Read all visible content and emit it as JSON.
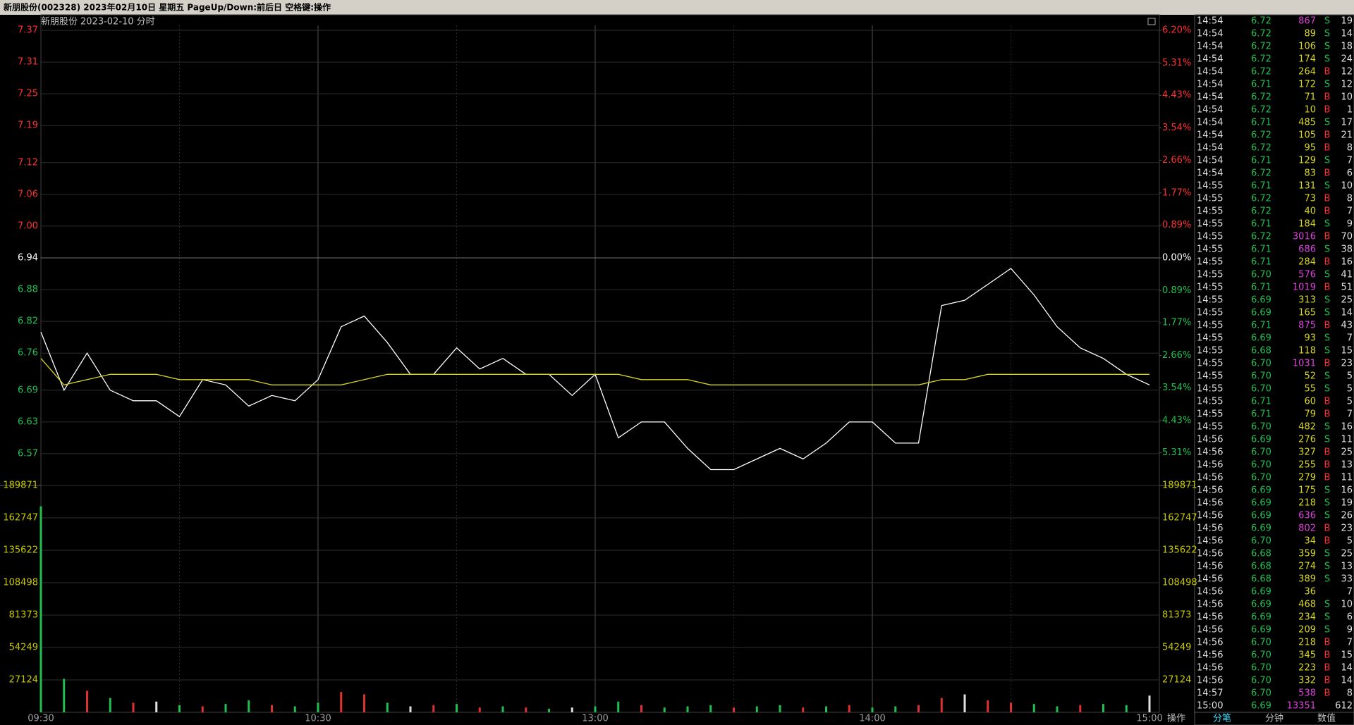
{
  "window_title": "新朋股份(002328) 2023年02月10日 星期五 PageUp/Down:前后日 空格键:操作",
  "operate": "操作",
  "tabs": [
    "分笔",
    "分钟",
    "数值"
  ],
  "chart_data": [
    {
      "type": "line",
      "title": "新朋股份",
      "subtitle": "2023-02-10 分时",
      "categories": [
        "09:30",
        null,
        null,
        null,
        null,
        null,
        null,
        null,
        null,
        null,
        null,
        null,
        "10:30",
        null,
        null,
        null,
        null,
        null,
        null,
        null,
        null,
        null,
        null,
        null,
        "13:00",
        null,
        null,
        null,
        null,
        null,
        null,
        null,
        null,
        null,
        null,
        null,
        "14:00",
        null,
        null,
        null,
        null,
        null,
        null,
        null,
        null,
        null,
        null,
        null,
        "15:00"
      ],
      "series": [
        {
          "color": "#ffffff",
          "values": [
            6.8,
            6.69,
            6.76,
            6.69,
            6.67,
            6.67,
            6.64,
            6.71,
            6.7,
            6.66,
            6.68,
            6.67,
            6.71,
            6.81,
            6.83,
            6.78,
            6.72,
            6.72,
            6.77,
            6.73,
            6.75,
            6.72,
            6.72,
            6.68,
            6.72,
            6.6,
            6.63,
            6.63,
            6.58,
            6.54,
            6.54,
            6.56,
            6.58,
            6.56,
            6.59,
            6.63,
            6.63,
            6.59,
            6.59,
            6.85,
            6.86,
            6.89,
            6.92,
            6.87,
            6.81,
            6.77,
            6.75,
            6.72,
            6.7
          ]
        },
        {
          "color": "#d8d820",
          "values": [
            6.75,
            6.7,
            6.71,
            6.72,
            6.72,
            6.72,
            6.71,
            6.71,
            6.71,
            6.71,
            6.7,
            6.7,
            6.7,
            6.7,
            6.71,
            6.72,
            6.72,
            6.72,
            6.72,
            6.72,
            6.72,
            6.72,
            6.72,
            6.72,
            6.72,
            6.72,
            6.71,
            6.71,
            6.71,
            6.7,
            6.7,
            6.7,
            6.7,
            6.7,
            6.7,
            6.7,
            6.7,
            6.7,
            6.7,
            6.71,
            6.71,
            6.72,
            6.72,
            6.72,
            6.72,
            6.72,
            6.72,
            6.72,
            6.72
          ]
        }
      ],
      "ylim": [
        6.51,
        7.37
      ],
      "yticks": [
        7.37,
        7.31,
        7.25,
        7.19,
        7.12,
        7.06,
        {
          "value": 7,
          "label": "7.00"
        },
        6.94,
        6.88,
        6.82,
        6.76,
        6.69,
        6.63,
        6.57
      ],
      "y2lim": [
        -6.2,
        6.2
      ],
      "y2ticks": [
        {
          "value": 6.2,
          "label": "6.20%"
        },
        {
          "value": 5.31,
          "label": "5.31%"
        },
        {
          "value": 4.43,
          "label": "4.43%"
        },
        {
          "value": 3.54,
          "label": "3.54%"
        },
        {
          "value": 2.66,
          "label": "2.66%"
        },
        {
          "value": 1.77,
          "label": "1.77%"
        },
        {
          "value": 0.89,
          "label": "0.89%"
        },
        {
          "value": 0,
          "label": "0.00%"
        },
        {
          "value": -0.89,
          "label": "0.89%"
        },
        {
          "value": -1.77,
          "label": "1.77%"
        },
        {
          "value": -2.66,
          "label": "2.66%"
        },
        {
          "value": -3.54,
          "label": "3.54%"
        },
        {
          "value": -4.43,
          "label": "4.43%"
        },
        {
          "value": -5.31,
          "label": "5.31%"
        }
      ],
      "grid": true
    },
    {
      "type": "bar",
      "categories": [
        "09:30",
        null,
        null,
        null,
        null,
        null,
        null,
        null,
        null,
        null,
        null,
        null,
        "10:30",
        null,
        null,
        null,
        null,
        null,
        null,
        null,
        null,
        null,
        null,
        null,
        "13:00",
        null,
        null,
        null,
        null,
        null,
        null,
        null,
        null,
        null,
        null,
        null,
        "14:00",
        null,
        null,
        null,
        null,
        null,
        null,
        null,
        null,
        null,
        null,
        null,
        "15:00"
      ],
      "values": [
        172400,
        28000,
        18000,
        12000,
        8000,
        9000,
        6000,
        5000,
        7000,
        10000,
        6000,
        5000,
        8000,
        17000,
        15000,
        8000,
        5000,
        6000,
        7000,
        4000,
        5000,
        4000,
        3000,
        4000,
        5000,
        9000,
        6000,
        4000,
        5000,
        6000,
        4000,
        5000,
        6000,
        4000,
        5000,
        6000,
        4000,
        5000,
        6000,
        12000,
        15000,
        10000,
        8000,
        7000,
        5000,
        6000,
        7000,
        6000,
        14000
      ],
      "colors": [
        "#20c050",
        "#20c050",
        "#e03030",
        "#20c050",
        "#e03030",
        "#e0e0e0",
        "#20c050",
        "#e03030",
        "#20c050",
        "#20c050",
        "#e03030",
        "#20c050",
        "#20c050",
        "#e03030",
        "#e03030",
        "#20c050",
        "#e0e0e0",
        "#e03030",
        "#20c050",
        "#e03030",
        "#20c050",
        "#e03030",
        "#20c050",
        "#e0e0e0",
        "#20c050",
        "#20c050",
        "#e03030",
        "#20c050",
        "#20c050",
        "#20c050",
        "#e03030",
        "#20c050",
        "#20c050",
        "#e03030",
        "#20c050",
        "#e03030",
        "#20c050",
        "#20c050",
        "#e03030",
        "#e03030",
        "#e0e0e0",
        "#e03030",
        "#e03030",
        "#20c050",
        "#20c050",
        "#e03030",
        "#20c050",
        "#20c050",
        "#e0e0e0"
      ],
      "ylim": [
        0,
        189871
      ],
      "yticks": [
        189871,
        162747,
        135622,
        108498,
        81373,
        54249,
        27124
      ],
      "grid": true
    }
  ],
  "trades": {
    "rows": [
      [
        "14:54",
        "6.72",
        "867",
        "S",
        "19"
      ],
      [
        "14:54",
        "6.72",
        "89",
        "S",
        "14"
      ],
      [
        "14:54",
        "6.72",
        "106",
        "S",
        "18"
      ],
      [
        "14:54",
        "6.72",
        "174",
        "S",
        "24"
      ],
      [
        "14:54",
        "6.72",
        "264",
        "B",
        "12"
      ],
      [
        "14:54",
        "6.71",
        "172",
        "S",
        "12"
      ],
      [
        "14:54",
        "6.72",
        "71",
        "B",
        "10"
      ],
      [
        "14:54",
        "6.72",
        "10",
        "B",
        "1"
      ],
      [
        "14:54",
        "6.71",
        "485",
        "S",
        "17"
      ],
      [
        "14:54",
        "6.72",
        "105",
        "B",
        "21"
      ],
      [
        "14:54",
        "6.72",
        "95",
        "B",
        "8"
      ],
      [
        "14:54",
        "6.71",
        "129",
        "S",
        "7"
      ],
      [
        "14:54",
        "6.72",
        "83",
        "B",
        "6"
      ],
      [
        "14:55",
        "6.71",
        "131",
        "S",
        "10"
      ],
      [
        "14:55",
        "6.72",
        "73",
        "B",
        "8"
      ],
      [
        "14:55",
        "6.72",
        "40",
        "B",
        "7"
      ],
      [
        "14:55",
        "6.71",
        "184",
        "S",
        "9"
      ],
      [
        "14:55",
        "6.72",
        "3016",
        "B",
        "70"
      ],
      [
        "14:55",
        "6.71",
        "686",
        "S",
        "38"
      ],
      [
        "14:55",
        "6.71",
        "284",
        "B",
        "16"
      ],
      [
        "14:55",
        "6.70",
        "576",
        "S",
        "41"
      ],
      [
        "14:55",
        "6.71",
        "1019",
        "B",
        "51"
      ],
      [
        "14:55",
        "6.69",
        "313",
        "S",
        "25"
      ],
      [
        "14:55",
        "6.69",
        "165",
        "S",
        "14"
      ],
      [
        "14:55",
        "6.71",
        "875",
        "B",
        "43"
      ],
      [
        "14:55",
        "6.69",
        "93",
        "S",
        "7"
      ],
      [
        "14:55",
        "6.68",
        "118",
        "S",
        "15"
      ],
      [
        "14:55",
        "6.70",
        "1031",
        "B",
        "23"
      ],
      [
        "14:55",
        "6.70",
        "52",
        "S",
        "5"
      ],
      [
        "14:55",
        "6.70",
        "55",
        "S",
        "5"
      ],
      [
        "14:55",
        "6.71",
        "60",
        "B",
        "5"
      ],
      [
        "14:55",
        "6.71",
        "79",
        "B",
        "7"
      ],
      [
        "14:55",
        "6.70",
        "482",
        "S",
        "16"
      ],
      [
        "14:56",
        "6.69",
        "276",
        "S",
        "11"
      ],
      [
        "14:56",
        "6.70",
        "327",
        "B",
        "25"
      ],
      [
        "14:56",
        "6.70",
        "255",
        "B",
        "13"
      ],
      [
        "14:56",
        "6.70",
        "279",
        "B",
        "11"
      ],
      [
        "14:56",
        "6.69",
        "175",
        "S",
        "16"
      ],
      [
        "14:56",
        "6.69",
        "218",
        "S",
        "19"
      ],
      [
        "14:56",
        "6.69",
        "636",
        "S",
        "26"
      ],
      [
        "14:56",
        "6.69",
        "802",
        "B",
        "23"
      ],
      [
        "14:56",
        "6.70",
        "34",
        "B",
        "5"
      ],
      [
        "14:56",
        "6.68",
        "359",
        "S",
        "25"
      ],
      [
        "14:56",
        "6.68",
        "274",
        "S",
        "13"
      ],
      [
        "14:56",
        "6.68",
        "389",
        "S",
        "33"
      ],
      [
        "14:56",
        "6.69",
        "36",
        null,
        "7"
      ],
      [
        "14:56",
        "6.69",
        "468",
        "S",
        "10"
      ],
      [
        "14:56",
        "6.69",
        "234",
        "S",
        "6"
      ],
      [
        "14:56",
        "6.69",
        "209",
        "S",
        "9"
      ],
      [
        "14:56",
        "6.70",
        "218",
        "B",
        "7"
      ],
      [
        "14:56",
        "6.70",
        "345",
        "B",
        "15"
      ],
      [
        "14:56",
        "6.70",
        "223",
        "B",
        "14"
      ],
      [
        "14:56",
        "6.70",
        "332",
        "B",
        "14"
      ],
      [
        "14:57",
        "6.70",
        "538",
        "B",
        "8"
      ],
      [
        "15:00",
        "6.69",
        "13351",
        null,
        "612"
      ]
    ]
  }
}
